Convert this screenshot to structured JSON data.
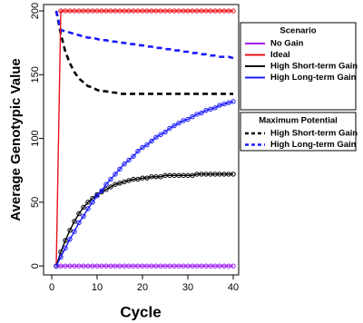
{
  "chart_data": {
    "type": "line",
    "x_label": "Cycle",
    "y_label": "Average Genotypic Value",
    "xlim": [
      -1.8,
      41.2
    ],
    "ylim": [
      -7,
      205
    ],
    "xticks": [
      0,
      10,
      20,
      30,
      40
    ],
    "yticks": [
      0,
      50,
      100,
      150,
      200
    ],
    "x": [
      1,
      2,
      3,
      4,
      5,
      6,
      7,
      8,
      9,
      10,
      11,
      12,
      13,
      14,
      15,
      16,
      17,
      18,
      19,
      20,
      21,
      22,
      23,
      24,
      25,
      26,
      27,
      28,
      29,
      30,
      31,
      32,
      33,
      34,
      35,
      36,
      37,
      38,
      39,
      40
    ],
    "legends": [
      {
        "title": "Scenario"
      },
      {
        "title": "Maximum Potential"
      }
    ],
    "series": [
      {
        "name": "No Gain",
        "color": "#a020f0",
        "legend": 0,
        "dashed": false,
        "markers": true,
        "values": [
          0,
          0,
          0,
          0,
          0,
          0,
          0,
          0,
          0,
          0,
          0,
          0,
          0,
          0,
          0,
          0,
          0,
          0,
          0,
          0,
          0,
          0,
          0,
          0,
          0,
          0,
          0,
          0,
          0,
          0,
          0,
          0,
          0,
          0,
          0,
          0,
          0,
          0,
          0,
          0
        ]
      },
      {
        "name": "Ideal",
        "color": "#e8111a",
        "legend": 0,
        "dashed": false,
        "markers": true,
        "values": [
          0,
          200,
          200,
          200,
          200,
          200,
          200,
          200,
          200,
          200,
          200,
          200,
          200,
          200,
          200,
          200,
          200,
          200,
          200,
          200,
          200,
          200,
          200,
          200,
          200,
          200,
          200,
          200,
          200,
          200,
          200,
          200,
          200,
          200,
          200,
          200,
          200,
          200,
          200,
          200
        ]
      },
      {
        "name": "High Short-term Gain",
        "color": "#000000",
        "legend": 0,
        "dashed": false,
        "markers": true,
        "values": [
          0,
          11,
          20,
          28,
          35,
          41,
          46,
          50,
          53,
          56,
          58,
          60,
          62,
          64,
          65,
          66,
          67,
          68,
          68,
          69,
          69,
          70,
          70,
          70,
          71,
          71,
          71,
          71,
          71,
          71,
          71,
          72,
          72,
          72,
          72,
          72,
          72,
          72,
          72,
          72
        ]
      },
      {
        "name": "High Long-term Gain",
        "color": "#1a1aff",
        "legend": 0,
        "dashed": false,
        "markers": true,
        "values": [
          0,
          7,
          14,
          21,
          27,
          34,
          39,
          45,
          50,
          55,
          59,
          64,
          68,
          72,
          76,
          80,
          83,
          86,
          90,
          93,
          95,
          98,
          101,
          103,
          105,
          108,
          110,
          112,
          114,
          115,
          117,
          119,
          120,
          122,
          123,
          124,
          126,
          127,
          128,
          129
        ]
      },
      {
        "name": "High Short-term Gain",
        "color": "#000000",
        "legend": 1,
        "dashed": true,
        "markers": false,
        "values": [
          200,
          182,
          168,
          159,
          152,
          147,
          144,
          141,
          140,
          138,
          137,
          137,
          136,
          136,
          135,
          135,
          135,
          135,
          135,
          135,
          135,
          135,
          135,
          135,
          135,
          135,
          135,
          135,
          135,
          135,
          135,
          135,
          135,
          135,
          135,
          135,
          135,
          135,
          135,
          135
        ]
      },
      {
        "name": "High Long-term Gain",
        "color": "#1a1aff",
        "legend": 1,
        "dashed": true,
        "markers": false,
        "values": [
          200,
          185,
          184,
          183,
          182,
          181,
          180,
          179,
          179,
          178,
          177,
          177,
          176,
          176,
          175,
          175,
          174,
          174,
          173,
          173,
          172,
          172,
          171,
          171,
          170,
          170,
          169,
          169,
          168,
          168,
          167,
          167,
          166,
          166,
          165,
          165,
          164,
          164,
          164,
          163
        ]
      }
    ]
  }
}
